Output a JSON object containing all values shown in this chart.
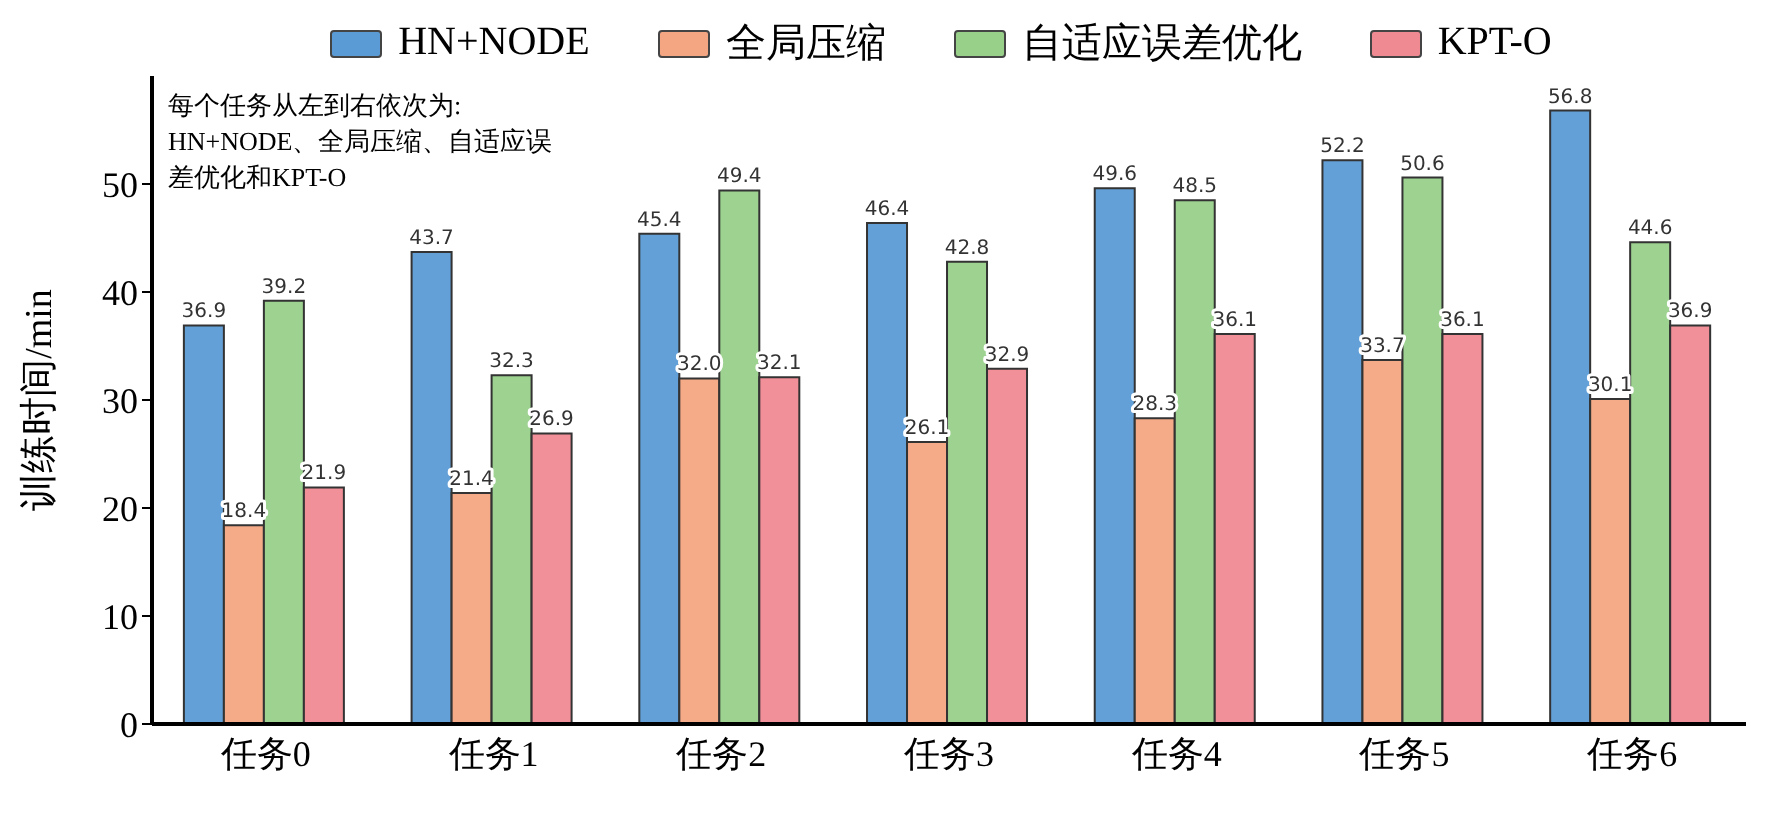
{
  "chart_data": {
    "type": "bar",
    "categories": [
      "任务0",
      "任务1",
      "任务2",
      "任务3",
      "任务4",
      "任务5",
      "任务6"
    ],
    "series": [
      {
        "name": "HN+NODE",
        "color": "#5b9bd5",
        "values": [
          36.9,
          43.7,
          45.4,
          46.4,
          49.6,
          52.2,
          56.8
        ]
      },
      {
        "name": "全局压缩",
        "color": "#f4a582",
        "values": [
          18.4,
          21.4,
          32.0,
          26.1,
          28.3,
          33.7,
          30.1
        ],
        "value_labels": [
          "18.4",
          "21.4",
          "32.0",
          "26.1",
          "28.3",
          "33.7",
          "30.1"
        ]
      },
      {
        "name": "自适应误差优化",
        "color": "#98d08a",
        "values": [
          39.2,
          32.3,
          49.4,
          42.8,
          48.5,
          50.6,
          44.6
        ]
      },
      {
        "name": "KPT-O",
        "color": "#f08a92",
        "values": [
          21.9,
          26.9,
          32.1,
          32.9,
          36.1,
          36.1,
          36.9
        ]
      }
    ],
    "ylabel": "训练时间/min",
    "ylim": [
      0,
      60
    ],
    "yticks": [
      0,
      10,
      20,
      30,
      40,
      50
    ],
    "data_labels": true,
    "legend": "top",
    "grid": false,
    "annotations": [
      "每个任务从左到右依次为:",
      "HN+NODE、全局压缩、自适应误",
      "差优化和KPT-O"
    ]
  }
}
